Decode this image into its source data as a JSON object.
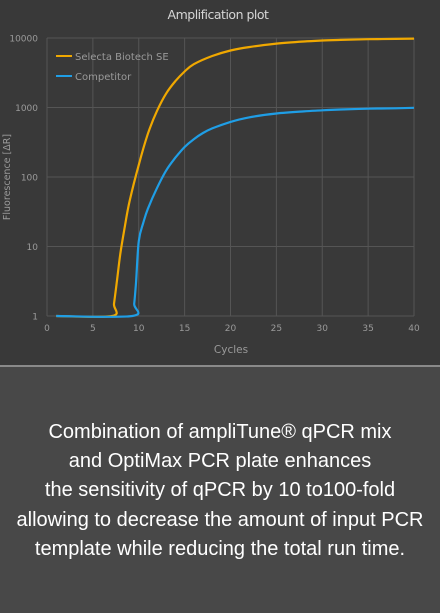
{
  "chart_data": {
    "type": "line",
    "title": "Amplification plot",
    "xlabel": "Cycles",
    "ylabel": "Fluorescence [ΔR]",
    "xlim": [
      0,
      40
    ],
    "ylim": [
      1,
      10000
    ],
    "yscale": "log",
    "xticks": [
      0,
      5,
      10,
      15,
      20,
      25,
      30,
      35,
      40
    ],
    "yticks": [
      1,
      10,
      100,
      1000,
      10000
    ],
    "ytick_labels": [
      "1",
      "10",
      "100",
      "1000",
      "10000"
    ],
    "grid": true,
    "legend_position": "top-left",
    "series": [
      {
        "name": "Selecta Biotech SE",
        "color": "#f0a800",
        "x": [
          1,
          7.1,
          7.3,
          7.6,
          8,
          8.5,
          9,
          10,
          11,
          12,
          13,
          14,
          15,
          16,
          18,
          20,
          22,
          25,
          28,
          30,
          32,
          35,
          38,
          40
        ],
        "y": [
          1,
          1,
          1.5,
          3,
          8,
          20,
          45,
          150,
          420,
          900,
          1600,
          2400,
          3300,
          4200,
          5500,
          6600,
          7400,
          8300,
          8900,
          9200,
          9400,
          9600,
          9700,
          9800
        ]
      },
      {
        "name": "Competitor",
        "color": "#1f9ee6",
        "x": [
          1,
          9.3,
          9.5,
          9.7,
          10,
          10.5,
          11,
          12,
          13,
          14,
          15,
          16,
          17,
          18,
          20,
          22,
          25,
          28,
          30,
          32,
          35,
          38,
          40
        ],
        "y": [
          1,
          1,
          1.5,
          3,
          12,
          22,
          35,
          70,
          125,
          190,
          270,
          350,
          430,
          500,
          620,
          720,
          820,
          880,
          910,
          935,
          960,
          975,
          990
        ]
      }
    ]
  },
  "caption": {
    "lines": [
      "Combination of ampliTune® qPCR mix",
      "and OptiMax PCR plate enhances",
      "the sensitivity of qPCR by 10 to100-fold",
      "allowing to decrease the amount of input PCR",
      "template while reducing the total run time."
    ]
  },
  "colors": {
    "chart_background": "#393939",
    "text_background": "#484848",
    "divider": "#8a8a8a",
    "grid": "#555555",
    "axis_text": "#9a9a9a"
  }
}
